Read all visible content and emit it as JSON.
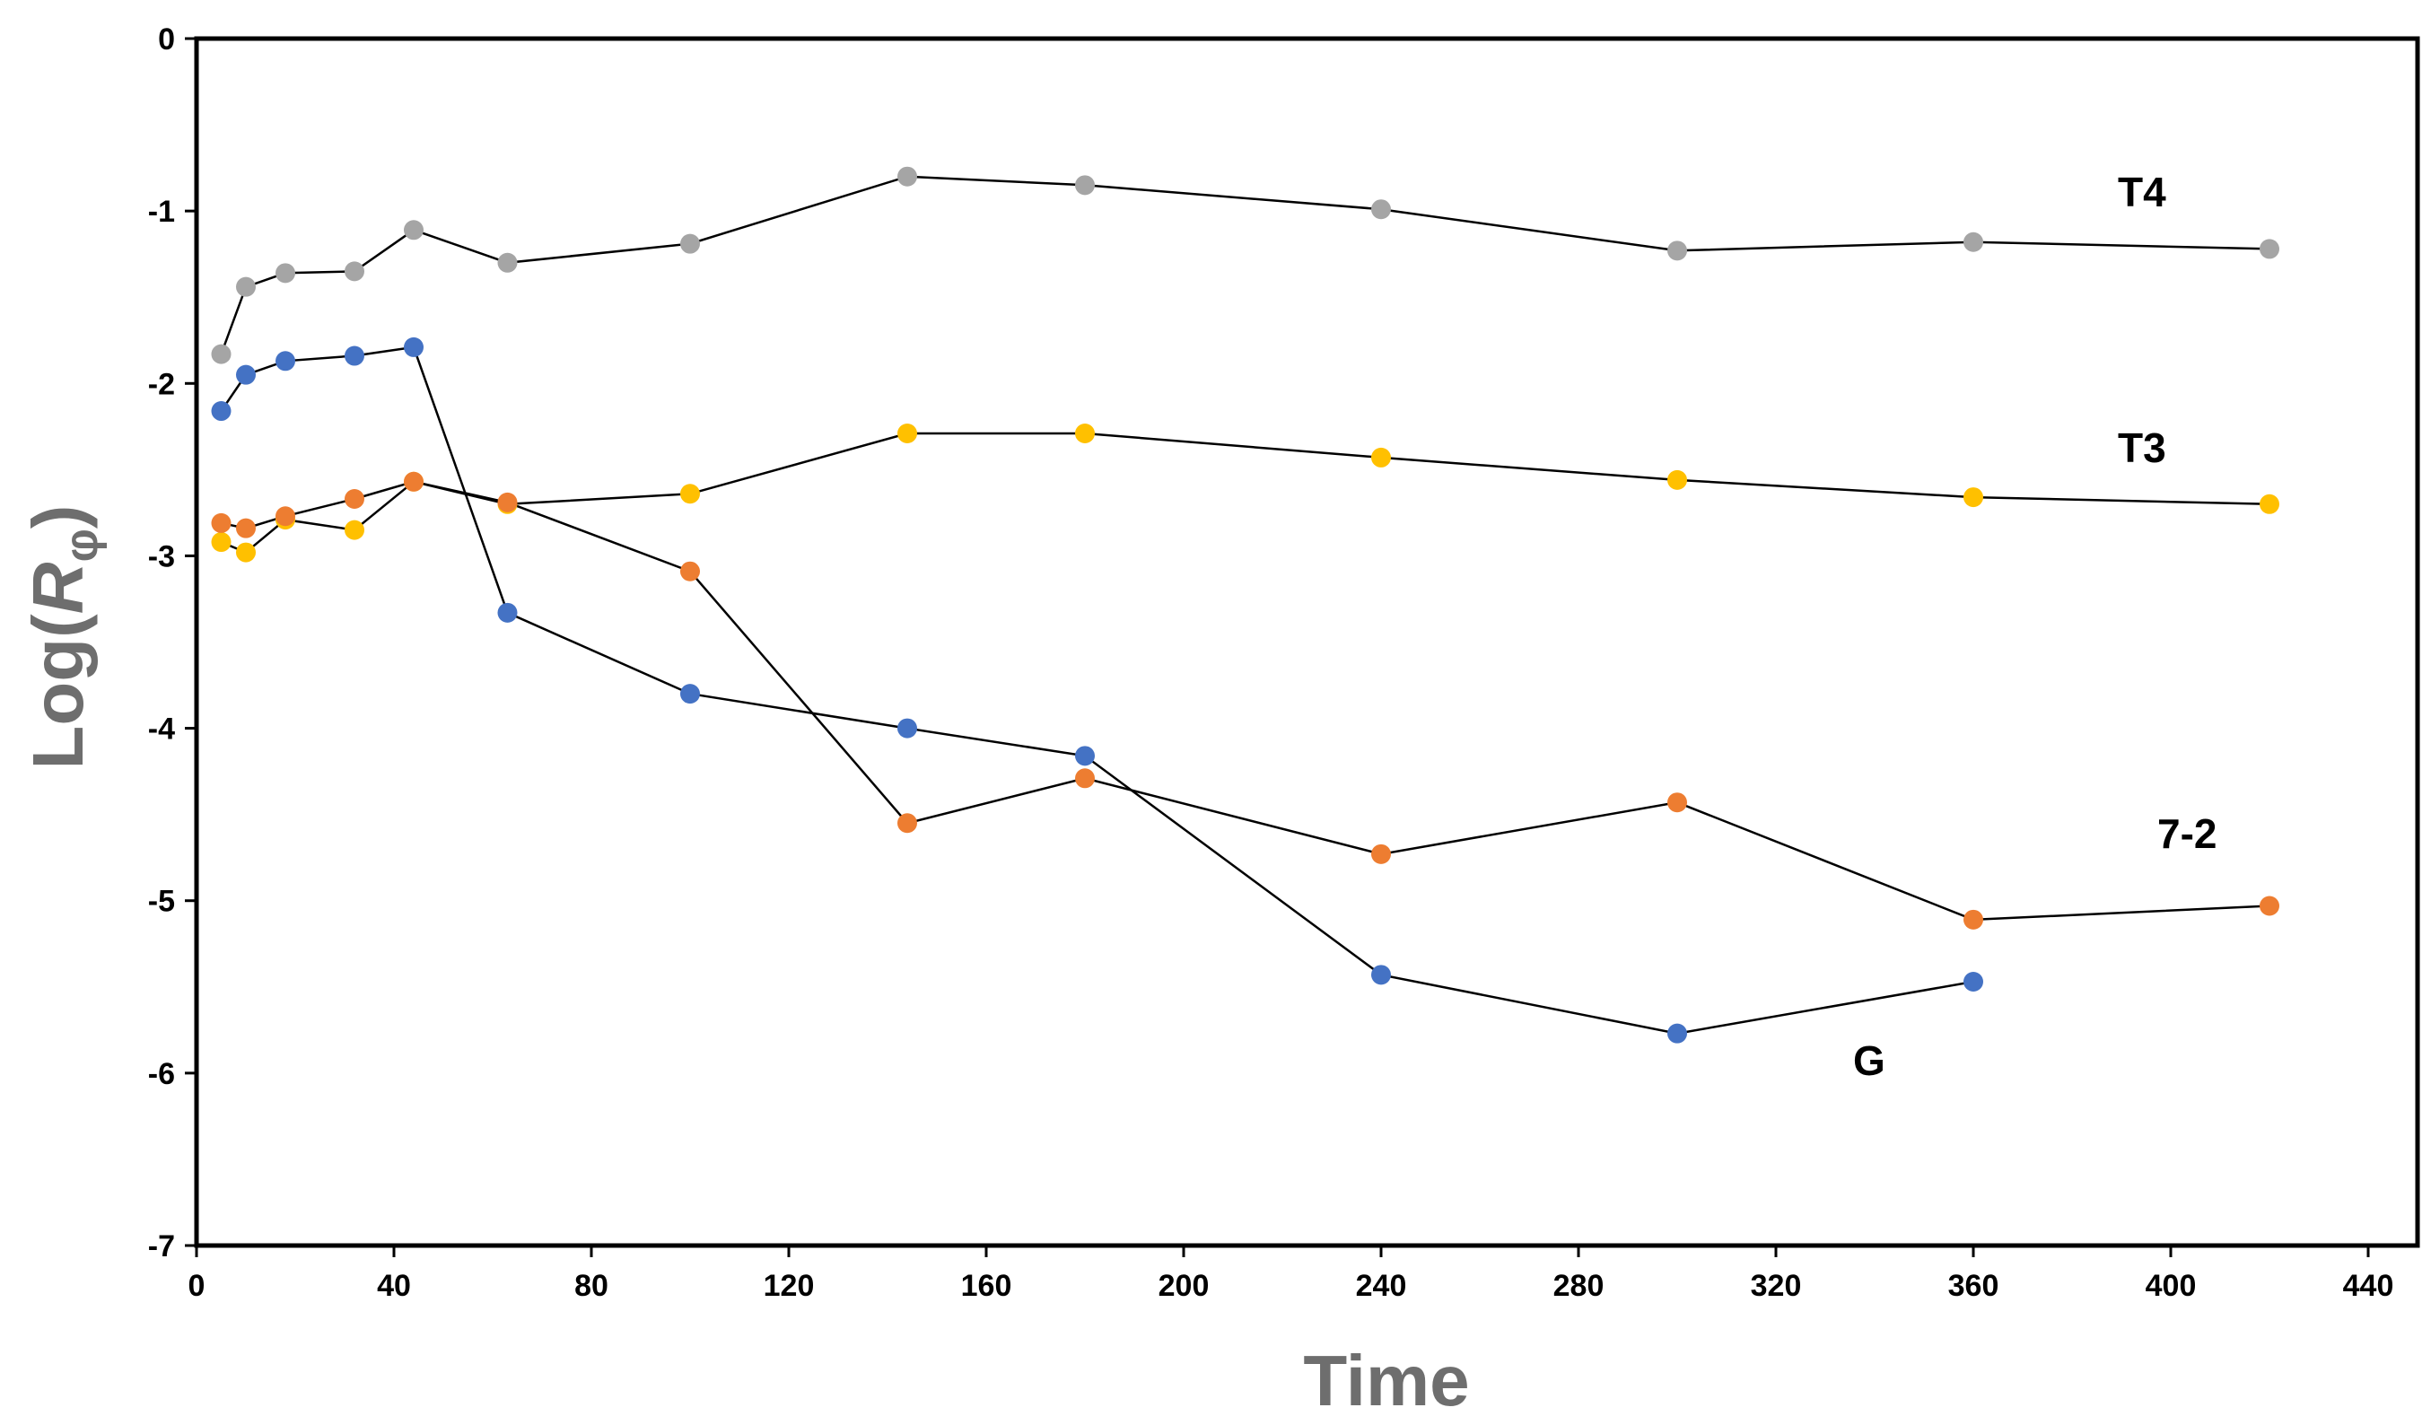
{
  "chart_data": {
    "type": "line",
    "title": "",
    "xlabel": "Time",
    "ylabel": {
      "prefix": "Log(",
      "var": "R",
      "sub": "φ",
      "suffix": ")"
    },
    "xlim": [
      0,
      450
    ],
    "ylim": [
      -7,
      0
    ],
    "x_ticks": [
      0,
      40,
      80,
      120,
      160,
      200,
      240,
      280,
      320,
      360,
      400,
      440
    ],
    "y_ticks": [
      0,
      -1,
      -2,
      -3,
      -4,
      -5,
      -6,
      -7
    ],
    "grid": false,
    "series": [
      {
        "name": "T4",
        "color": "#a5a5a5",
        "x": [
          5,
          10,
          18,
          32,
          44,
          63,
          100,
          144,
          180,
          240,
          300,
          360,
          420
        ],
        "y": [
          -1.83,
          -1.44,
          -1.36,
          -1.35,
          -1.11,
          -1.3,
          -1.19,
          -0.8,
          -0.85,
          -0.99,
          -1.23,
          -1.18,
          -1.22
        ]
      },
      {
        "name": "T3",
        "color": "#ffc000",
        "x": [
          5,
          10,
          18,
          32,
          44,
          63,
          100,
          144,
          180,
          240,
          300,
          360,
          420
        ],
        "y": [
          -2.92,
          -2.98,
          -2.79,
          -2.85,
          -2.57,
          -2.7,
          -2.64,
          -2.29,
          -2.29,
          -2.43,
          -2.56,
          -2.66,
          -2.7
        ]
      },
      {
        "name": "7-2",
        "color": "#ed7d31",
        "x": [
          5,
          10,
          18,
          32,
          44,
          63,
          100,
          144,
          180,
          240,
          300,
          360,
          420
        ],
        "y": [
          -2.81,
          -2.84,
          -2.77,
          -2.67,
          -2.57,
          -2.69,
          -3.09,
          -4.55,
          -4.29,
          -4.73,
          -4.43,
          -5.11,
          -5.03
        ]
      },
      {
        "name": "G",
        "color": "#4472c4",
        "x": [
          5,
          10,
          18,
          32,
          44,
          63,
          100,
          144,
          180,
          240,
          300,
          360
        ],
        "y": [
          -2.16,
          -1.95,
          -1.87,
          -1.84,
          -1.79,
          -3.33,
          -3.8,
          -4.0,
          -4.16,
          -5.43,
          -5.77,
          -5.47
        ]
      }
    ]
  }
}
